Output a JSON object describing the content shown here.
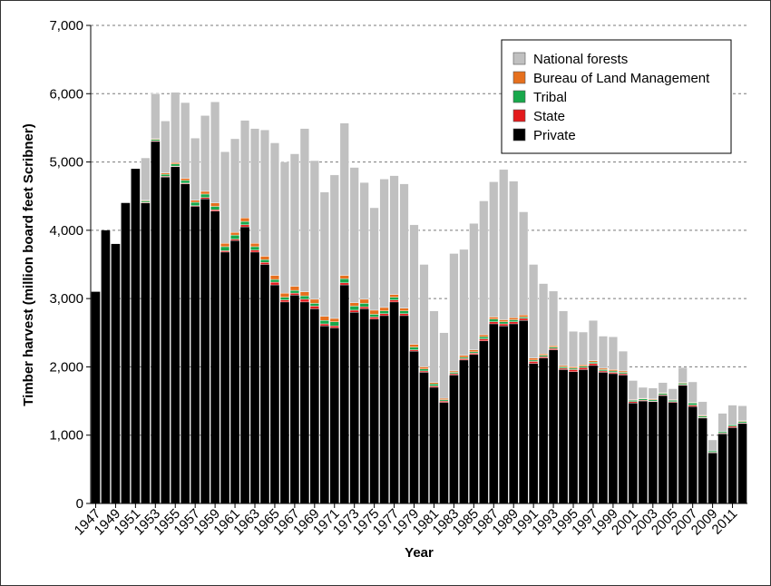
{
  "chart_data": {
    "type": "bar",
    "stacked": true,
    "xlabel": "Year",
    "ylabel": "Timber harvest (million board feet Scribner)",
    "ylim": [
      0,
      7000
    ],
    "yticks": [
      "0",
      "1,000",
      "2,000",
      "3,000",
      "4,000",
      "5,000",
      "6,000",
      "7,000"
    ],
    "ytick_values": [
      0,
      1000,
      2000,
      3000,
      4000,
      5000,
      6000,
      7000
    ],
    "grid": "horizontal dashed",
    "legend_position": "top-right",
    "categories": [
      "1947",
      "1948",
      "1949",
      "1950",
      "1951",
      "1952",
      "1953",
      "1954",
      "1955",
      "1956",
      "1957",
      "1958",
      "1959",
      "1960",
      "1961",
      "1962",
      "1963",
      "1964",
      "1965",
      "1966",
      "1967",
      "1968",
      "1969",
      "1970",
      "1971",
      "1972",
      "1973",
      "1974",
      "1975",
      "1976",
      "1977",
      "1978",
      "1979",
      "1980",
      "1981",
      "1982",
      "1983",
      "1984",
      "1985",
      "1986",
      "1987",
      "1988",
      "1989",
      "1990",
      "1991",
      "1992",
      "1993",
      "1994",
      "1995",
      "1996",
      "1997",
      "1998",
      "1999",
      "2000",
      "2001",
      "2002",
      "2003",
      "2004",
      "2005",
      "2006",
      "2007",
      "2008",
      "2009",
      "2010",
      "2011",
      "2012"
    ],
    "xtick_labels": [
      "1947",
      "1949",
      "1951",
      "1953",
      "1955",
      "1957",
      "1959",
      "1961",
      "1963",
      "1965",
      "1967",
      "1969",
      "1971",
      "1973",
      "1975",
      "1977",
      "1979",
      "1981",
      "1983",
      "1985",
      "1987",
      "1989",
      "1991",
      "1993",
      "1995",
      "1997",
      "1999",
      "2001",
      "2003",
      "2005",
      "2007",
      "2009",
      "2011"
    ],
    "series": [
      {
        "name": "Private",
        "color": "#000000",
        "values": [
          3100,
          4000,
          3800,
          4400,
          4900,
          4400,
          5300,
          4780,
          4930,
          4680,
          4350,
          4460,
          4280,
          3680,
          3850,
          4050,
          3680,
          3500,
          3200,
          2950,
          3050,
          2950,
          2850,
          2600,
          2570,
          3200,
          2800,
          2850,
          2700,
          2750,
          2950,
          2750,
          2230,
          1920,
          1700,
          1480,
          1880,
          2100,
          2180,
          2380,
          2630,
          2600,
          2630,
          2680,
          2050,
          2130,
          2250,
          1960,
          1930,
          1960,
          2020,
          1920,
          1900,
          1880,
          1470,
          1500,
          1490,
          1580,
          1480,
          1730,
          1420,
          1250,
          740,
          1020,
          1110,
          1170
        ]
      },
      {
        "name": "State",
        "color": "#e31a1c",
        "values": [
          0,
          0,
          0,
          0,
          0,
          10,
          10,
          10,
          10,
          10,
          10,
          20,
          20,
          20,
          20,
          30,
          30,
          30,
          40,
          30,
          30,
          40,
          40,
          30,
          30,
          30,
          30,
          30,
          30,
          30,
          30,
          30,
          20,
          20,
          20,
          20,
          20,
          20,
          20,
          30,
          30,
          30,
          30,
          30,
          30,
          20,
          20,
          20,
          30,
          30,
          30,
          20,
          20,
          20,
          20,
          10,
          10,
          10,
          10,
          10,
          20,
          10,
          10,
          10,
          20,
          10
        ]
      },
      {
        "name": "Tribal",
        "color": "#18a84b",
        "values": [
          0,
          0,
          0,
          0,
          0,
          20,
          20,
          30,
          30,
          40,
          50,
          50,
          50,
          60,
          60,
          50,
          50,
          40,
          40,
          40,
          40,
          50,
          40,
          50,
          60,
          60,
          60,
          50,
          40,
          40,
          40,
          40,
          40,
          30,
          30,
          20,
          20,
          20,
          20,
          30,
          40,
          30,
          30,
          20,
          20,
          20,
          20,
          20,
          20,
          20,
          20,
          20,
          20,
          20,
          20,
          20,
          20,
          20,
          20,
          20,
          30,
          20,
          20,
          20,
          20,
          20
        ]
      },
      {
        "name": "Bureau of Land Management",
        "color": "#e6701e",
        "values": [
          0,
          0,
          0,
          0,
          0,
          10,
          10,
          20,
          20,
          30,
          30,
          40,
          50,
          50,
          40,
          50,
          50,
          50,
          60,
          60,
          60,
          60,
          60,
          60,
          50,
          50,
          50,
          60,
          60,
          50,
          40,
          40,
          40,
          30,
          20,
          20,
          20,
          30,
          30,
          30,
          30,
          30,
          30,
          30,
          30,
          20,
          20,
          20,
          20,
          20,
          20,
          20,
          20,
          20,
          10,
          10,
          10,
          10,
          10,
          10,
          10,
          10,
          0,
          0,
          0,
          10
        ]
      },
      {
        "name": "National forests",
        "color": "#c0c0c0",
        "values": [
          0,
          0,
          0,
          0,
          0,
          620,
          660,
          760,
          1030,
          1110,
          910,
          1110,
          1480,
          1340,
          1370,
          1430,
          1680,
          1850,
          1940,
          1920,
          1940,
          2390,
          2030,
          1820,
          2100,
          2230,
          1980,
          1710,
          1500,
          1880,
          1740,
          1820,
          1750,
          1500,
          1050,
          960,
          1720,
          1550,
          1850,
          1960,
          1980,
          2200,
          2000,
          1510,
          1370,
          1030,
          800,
          800,
          520,
          480,
          590,
          470,
          480,
          290,
          280,
          160,
          160,
          150,
          160,
          220,
          300,
          200,
          160,
          270,
          290,
          220
        ]
      }
    ]
  }
}
